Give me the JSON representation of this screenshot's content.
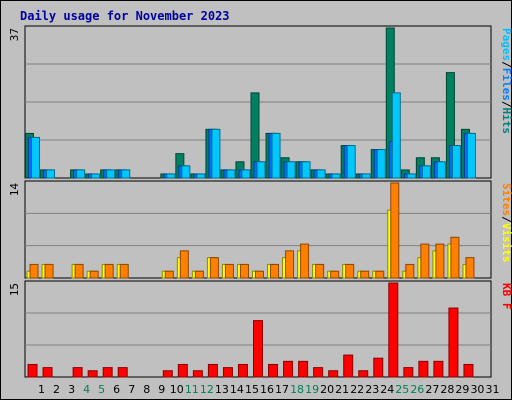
{
  "chart_data": {
    "type": "bar",
    "title": "Daily usage for November 2023",
    "categories": [
      "1",
      "2",
      "3",
      "4",
      "5",
      "6",
      "7",
      "8",
      "9",
      "10",
      "11",
      "12",
      "13",
      "14",
      "15",
      "16",
      "17",
      "18",
      "19",
      "20",
      "21",
      "22",
      "23",
      "24",
      "25",
      "26",
      "27",
      "28",
      "29",
      "30",
      "31"
    ],
    "weekend_days": [
      "4",
      "5",
      "11",
      "12",
      "18",
      "19",
      "25",
      "26"
    ],
    "panels": [
      {
        "name": "top",
        "ymax_label": "37",
        "ymax": 37,
        "side_labels": [
          {
            "text": "Pages",
            "color": "#00c0ff"
          },
          {
            "text": "/",
            "color": "#000000"
          },
          {
            "text": "Files",
            "color": "#0080ff"
          },
          {
            "text": "/",
            "color": "#000000"
          },
          {
            "text": "Hits",
            "color": "#008080"
          }
        ],
        "series": [
          {
            "key": "hits",
            "color": "#008060",
            "values": [
              11,
              2,
              0,
              2,
              1,
              2,
              2,
              0,
              0,
              1,
              6,
              1,
              12,
              2,
              4,
              21,
              11,
              5,
              4,
              2,
              1,
              8,
              1,
              7,
              37,
              2,
              5,
              5,
              26,
              12,
              0
            ]
          },
          {
            "key": "files",
            "color": "#0070ff",
            "values": [
              10,
              2,
              0,
              2,
              1,
              2,
              2,
              0,
              0,
              1,
              3,
              1,
              12,
              2,
              2,
              4,
              11,
              4,
              4,
              2,
              1,
              8,
              1,
              7,
              9,
              1,
              3,
              4,
              8,
              11,
              0
            ]
          },
          {
            "key": "pages",
            "color": "#00c8ff",
            "values": [
              10,
              2,
              0,
              2,
              1,
              2,
              2,
              0,
              0,
              1,
              3,
              1,
              12,
              2,
              2,
              4,
              11,
              4,
              4,
              2,
              1,
              8,
              1,
              7,
              21,
              1,
              3,
              4,
              8,
              11,
              0
            ]
          }
        ]
      },
      {
        "name": "middle",
        "ymax_label": "14",
        "ymax": 14,
        "side_labels": [
          {
            "text": "Sites",
            "color": "#ff8000"
          },
          {
            "text": "/",
            "color": "#000000"
          },
          {
            "text": "Visits",
            "color": "#ffff00"
          }
        ],
        "series": [
          {
            "key": "visits",
            "color": "#ffff00",
            "values": [
              1,
              2,
              0,
              2,
              1,
              2,
              2,
              0,
              0,
              1,
              3,
              1,
              3,
              2,
              2,
              1,
              2,
              3,
              4,
              2,
              1,
              2,
              1,
              1,
              10,
              1,
              3,
              4,
              5,
              2,
              0
            ]
          },
          {
            "key": "sites",
            "color": "#ff8000",
            "values": [
              2,
              2,
              0,
              2,
              1,
              2,
              2,
              0,
              0,
              1,
              4,
              1,
              3,
              2,
              2,
              1,
              2,
              4,
              5,
              2,
              1,
              2,
              1,
              1,
              14,
              2,
              5,
              5,
              6,
              3,
              0
            ]
          }
        ]
      },
      {
        "name": "bottom",
        "ymax_label": "15",
        "ymax": 15,
        "side_labels": [
          {
            "text": "KB F",
            "color": "#ff0000"
          }
        ],
        "series": [
          {
            "key": "kb",
            "color": "#ff0000",
            "values": [
              2,
              1.5,
              0,
              1.5,
              1,
              1.5,
              1.5,
              0,
              0,
              1,
              2,
              1,
              2,
              1.5,
              2,
              9,
              2,
              2.5,
              2.5,
              1.5,
              1,
              3.5,
              1,
              3,
              15,
              1.5,
              2.5,
              2.5,
              11,
              2,
              0
            ]
          }
        ]
      }
    ]
  }
}
